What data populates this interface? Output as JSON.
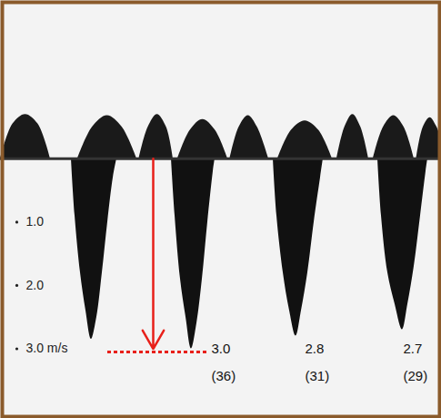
{
  "chart_data": {
    "type": "area",
    "xlim": [
      0,
      97
    ],
    "ylim": [
      -2.5,
      4.1
    ],
    "yticks": [
      {
        "value": 1,
        "label": "1.0"
      },
      {
        "value": 2,
        "label": "2.0"
      },
      {
        "value": 3,
        "label": "3.0 m/s"
      }
    ],
    "tick_labels": "y",
    "baseline": 0,
    "series": [
      {
        "type": "area",
        "color": "#111111",
        "x": [
          15.6,
          16.4,
          17.6,
          18.8,
          20,
          21.2,
          22.4,
          23.6,
          24.8,
          25.6,
          31,
          37.6,
          38.4,
          39.6,
          40.8,
          42,
          43.2,
          44.4,
          45.6,
          46.8,
          47.2,
          53,
          60,
          60.8,
          62.2,
          63.6,
          65,
          66.2,
          67.6,
          69,
          70.4,
          71,
          77,
          83,
          83.8,
          85.2,
          86.8,
          88.4,
          89.6,
          91,
          92.4,
          93.6,
          94
        ],
        "values": [
          0,
          0.9,
          1.8,
          2.4,
          2.85,
          2.5,
          1.8,
          1.0,
          0.3,
          0,
          null,
          0,
          0.9,
          1.9,
          2.5,
          3.0,
          2.6,
          1.9,
          1.0,
          0.2,
          0,
          null,
          0,
          0.9,
          1.8,
          2.4,
          2.8,
          2.4,
          1.8,
          1.0,
          0.3,
          0,
          null,
          0,
          0.9,
          1.8,
          2.3,
          2.7,
          2.3,
          1.7,
          0.9,
          0.2,
          0
        ]
      },
      {
        "type": "area",
        "color": "#1a1a1a",
        "x": [
          0,
          2.75,
          5.5,
          8.25,
          11,
          14,
          17,
          20.25,
          23.5,
          26.75,
          30,
          30.25,
          30.5,
          32.5,
          34.5,
          36.5,
          38,
          38.5,
          39,
          41.75,
          44.5,
          47.25,
          50,
          50.25,
          50.5,
          52.5,
          54.5,
          56.5,
          59,
          60,
          61,
          64,
          67,
          70,
          73,
          73.5,
          74,
          75.75,
          77.5,
          79.25,
          81,
          81.5,
          82,
          84.25,
          86.5,
          88.75,
          91,
          91.25,
          91.5,
          93,
          94.5,
          96,
          97
        ],
        "values": [
          0,
          -0.55,
          -0.7,
          -0.55,
          0,
          null,
          0,
          -0.5,
          -0.68,
          -0.5,
          0,
          null,
          0,
          -0.5,
          -0.7,
          -0.5,
          0,
          null,
          0,
          -0.45,
          -0.62,
          -0.45,
          0,
          null,
          0,
          -0.5,
          -0.68,
          -0.5,
          0,
          null,
          0,
          -0.45,
          -0.6,
          -0.45,
          0,
          null,
          0,
          -0.5,
          -0.7,
          -0.5,
          0,
          null,
          0,
          -0.5,
          -0.68,
          -0.5,
          0,
          null,
          0,
          -0.5,
          -0.65,
          -0.5,
          -0.3
        ]
      }
    ],
    "annotations": [
      {
        "x": 46.4,
        "y": 3.0,
        "text": "3.0"
      },
      {
        "x": 46.4,
        "y": 3.43,
        "text": "(36)"
      },
      {
        "x": 67,
        "y": 3.0,
        "text": "2.8"
      },
      {
        "x": 67,
        "y": 3.43,
        "text": "(31)"
      },
      {
        "x": 88.6,
        "y": 3.0,
        "text": "2.7"
      },
      {
        "x": 88.6,
        "y": 3.43,
        "text": "(29)"
      }
    ],
    "arrow": {
      "x": 33.6,
      "y1": 0,
      "y2": 3.0,
      "color": "#e8201a"
    },
    "measure_line": {
      "y": 3.05,
      "x1": 23.6,
      "x2": 45.6,
      "color": "#e8201a",
      "line_style": "dotted"
    }
  }
}
